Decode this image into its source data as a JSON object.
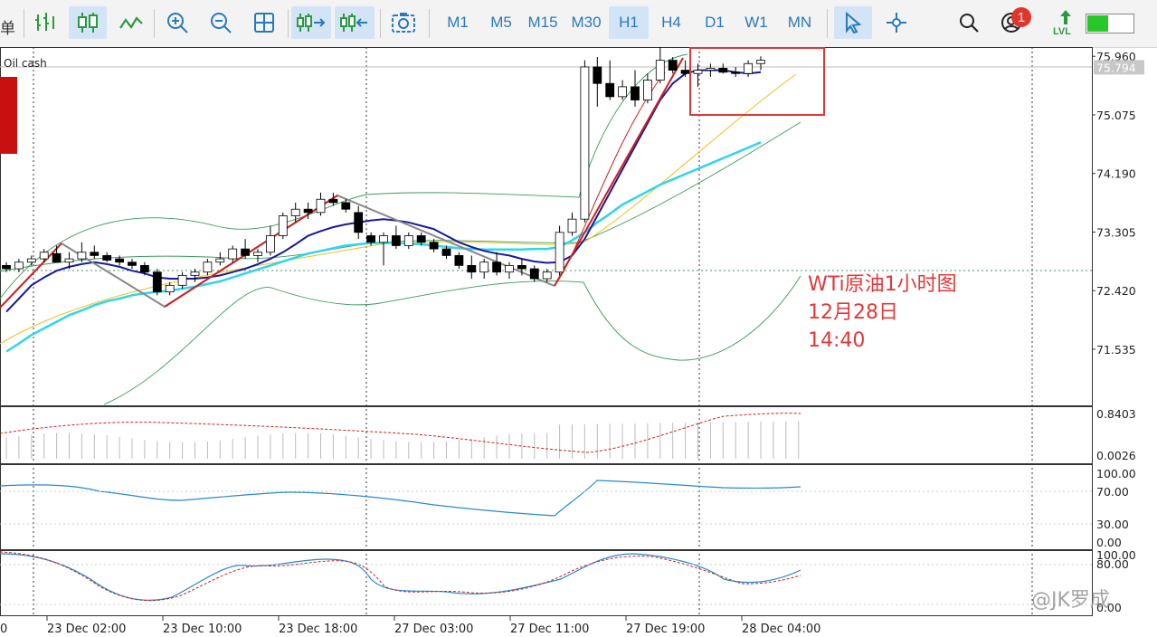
{
  "toolbar": {
    "truncated_label": "单",
    "timeframes": [
      {
        "label": "M1",
        "active": false
      },
      {
        "label": "M5",
        "active": false
      },
      {
        "label": "M15",
        "active": false
      },
      {
        "label": "M30",
        "active": false
      },
      {
        "label": "H1",
        "active": true
      },
      {
        "label": "H4",
        "active": false
      },
      {
        "label": "D1",
        "active": false
      },
      {
        "label": "W1",
        "active": false
      },
      {
        "label": "MN",
        "active": false
      }
    ],
    "notification_count": "1",
    "level_label": "LVL",
    "level_fill": 0.45
  },
  "chart": {
    "symbol": "Oil cash",
    "current_price_label": "75.794",
    "annotation": [
      "WTi原油1小时图",
      "12月28日",
      "14:40"
    ],
    "watermark": "@JK罗成",
    "colors": {
      "bull": "#ffffff",
      "bear": "#000000",
      "ma_fast": "#cc2222",
      "ma_mid": "#1a1a9a",
      "ma_slow": "#30d4ee",
      "ma_yellow": "#f0c020",
      "bands": "#3a9a5a",
      "zigzag": "#888888",
      "zigzag_up": "#cc2222",
      "signal": "#cc2222",
      "oscillator": "#2a8ac8",
      "annotation": "#e03a3a"
    }
  },
  "chart_data": {
    "type": "candlestick",
    "y_ticks": [
      "75.960",
      "75.075",
      "74.190",
      "73.305",
      "72.420",
      "71.535"
    ],
    "ylim": [
      70.7,
      76.1
    ],
    "x_labels": [
      "23 Dec 02:00",
      "23 Dec 10:00",
      "23 Dec 18:00",
      "27 Dec 03:00",
      "27 Dec 11:00",
      "27 Dec 19:00",
      "28 Dec 04:00"
    ],
    "candles": [
      [
        72.8,
        72.85,
        72.7,
        72.75
      ],
      [
        72.75,
        72.9,
        72.7,
        72.85
      ],
      [
        72.85,
        72.95,
        72.8,
        72.9
      ],
      [
        72.9,
        73.05,
        72.85,
        73.0
      ],
      [
        72.98,
        73.1,
        72.9,
        72.85
      ],
      [
        72.85,
        73.0,
        72.75,
        72.9
      ],
      [
        72.9,
        73.15,
        72.85,
        73.0
      ],
      [
        73.0,
        73.1,
        72.9,
        72.95
      ],
      [
        72.95,
        73.0,
        72.85,
        72.88
      ],
      [
        72.9,
        72.95,
        72.8,
        72.85
      ],
      [
        72.85,
        72.9,
        72.75,
        72.8
      ],
      [
        72.8,
        72.85,
        72.65,
        72.7
      ],
      [
        72.7,
        72.75,
        72.35,
        72.4
      ],
      [
        72.4,
        72.55,
        72.35,
        72.5
      ],
      [
        72.5,
        72.7,
        72.45,
        72.65
      ],
      [
        72.65,
        72.75,
        72.55,
        72.7
      ],
      [
        72.7,
        72.9,
        72.65,
        72.85
      ],
      [
        72.85,
        73.0,
        72.8,
        72.9
      ],
      [
        72.9,
        73.1,
        72.85,
        73.05
      ],
      [
        73.05,
        73.2,
        72.9,
        72.95
      ],
      [
        72.95,
        73.05,
        72.85,
        73.0
      ],
      [
        73.0,
        73.4,
        72.95,
        73.25
      ],
      [
        73.25,
        73.6,
        73.2,
        73.55
      ],
      [
        73.55,
        73.75,
        73.45,
        73.65
      ],
      [
        73.65,
        73.75,
        73.5,
        73.6
      ],
      [
        73.6,
        73.9,
        73.55,
        73.8
      ],
      [
        73.8,
        73.9,
        73.7,
        73.75
      ],
      [
        73.75,
        73.8,
        73.6,
        73.65
      ],
      [
        73.6,
        73.7,
        73.2,
        73.3
      ],
      [
        73.25,
        73.3,
        73.1,
        73.15
      ],
      [
        73.15,
        73.3,
        72.8,
        73.25
      ],
      [
        73.25,
        73.4,
        73.05,
        73.1
      ],
      [
        73.1,
        73.3,
        73.05,
        73.25
      ],
      [
        73.25,
        73.3,
        73.1,
        73.15
      ],
      [
        73.15,
        73.2,
        73.0,
        73.05
      ],
      [
        73.05,
        73.1,
        72.9,
        72.95
      ],
      [
        72.95,
        73.0,
        72.75,
        72.8
      ],
      [
        72.8,
        72.95,
        72.6,
        72.7
      ],
      [
        72.7,
        72.9,
        72.6,
        72.85
      ],
      [
        72.85,
        73.0,
        72.65,
        72.7
      ],
      [
        72.7,
        72.85,
        72.6,
        72.8
      ],
      [
        72.8,
        72.9,
        72.65,
        72.75
      ],
      [
        72.75,
        72.8,
        72.55,
        72.6
      ],
      [
        72.6,
        72.75,
        72.55,
        72.7
      ],
      [
        72.7,
        73.4,
        72.65,
        73.3
      ],
      [
        73.3,
        73.6,
        73.25,
        73.5
      ],
      [
        73.5,
        75.9,
        73.45,
        75.8
      ],
      [
        75.8,
        75.95,
        75.2,
        75.55
      ],
      [
        75.55,
        75.9,
        75.3,
        75.35
      ],
      [
        75.35,
        75.6,
        75.3,
        75.5
      ],
      [
        75.5,
        75.75,
        75.2,
        75.3
      ],
      [
        75.3,
        75.7,
        75.25,
        75.6
      ],
      [
        75.6,
        76.1,
        75.55,
        75.9
      ],
      [
        75.9,
        75.95,
        75.7,
        75.75
      ],
      [
        75.75,
        75.9,
        75.65,
        75.7
      ],
      [
        75.7,
        75.85,
        75.5,
        75.75
      ],
      [
        75.75,
        75.85,
        75.65,
        75.78
      ],
      [
        75.78,
        75.85,
        75.7,
        75.72
      ],
      [
        75.72,
        75.8,
        75.65,
        75.7
      ],
      [
        75.7,
        75.9,
        75.65,
        75.85
      ],
      [
        75.85,
        75.96,
        75.75,
        75.9
      ]
    ],
    "ma_mid": [
      72.1,
      72.3,
      72.5,
      72.62,
      72.72,
      72.78,
      72.82,
      72.85,
      72.82,
      72.78,
      72.72,
      72.68,
      72.62,
      72.6,
      72.6,
      72.6,
      72.62,
      72.65,
      72.7,
      72.75,
      72.82,
      72.9,
      73.0,
      73.12,
      73.25,
      73.32,
      73.38,
      73.42,
      73.45,
      73.48,
      73.5,
      73.48,
      73.45,
      73.4,
      73.35,
      73.25,
      73.15,
      73.08,
      73.02,
      72.98,
      72.95,
      72.9,
      72.86,
      72.84,
      72.85,
      72.95,
      73.2,
      73.55,
      73.9,
      74.25,
      74.6,
      74.95,
      75.3,
      75.55,
      75.7,
      75.75,
      75.75,
      75.75,
      75.72,
      75.7,
      75.72
    ],
    "ma_slow": [
      71.5,
      71.62,
      71.75,
      71.85,
      71.95,
      72.05,
      72.12,
      72.2,
      72.26,
      72.3,
      72.35,
      72.38,
      72.4,
      72.42,
      72.45,
      72.48,
      72.52,
      72.56,
      72.62,
      72.68,
      72.74,
      72.8,
      72.86,
      72.92,
      72.98,
      73.02,
      73.06,
      73.1,
      73.12,
      73.14,
      73.14,
      73.14,
      73.13,
      73.12,
      73.1,
      73.08,
      73.06,
      73.05,
      73.04,
      73.04,
      73.04,
      73.04,
      73.05,
      73.05,
      73.08,
      73.18,
      73.3,
      73.45,
      73.58,
      73.72,
      73.82,
      73.92,
      74.02,
      74.1,
      74.18,
      74.26,
      74.34,
      74.42,
      74.5,
      74.58,
      74.66
    ]
  }
}
